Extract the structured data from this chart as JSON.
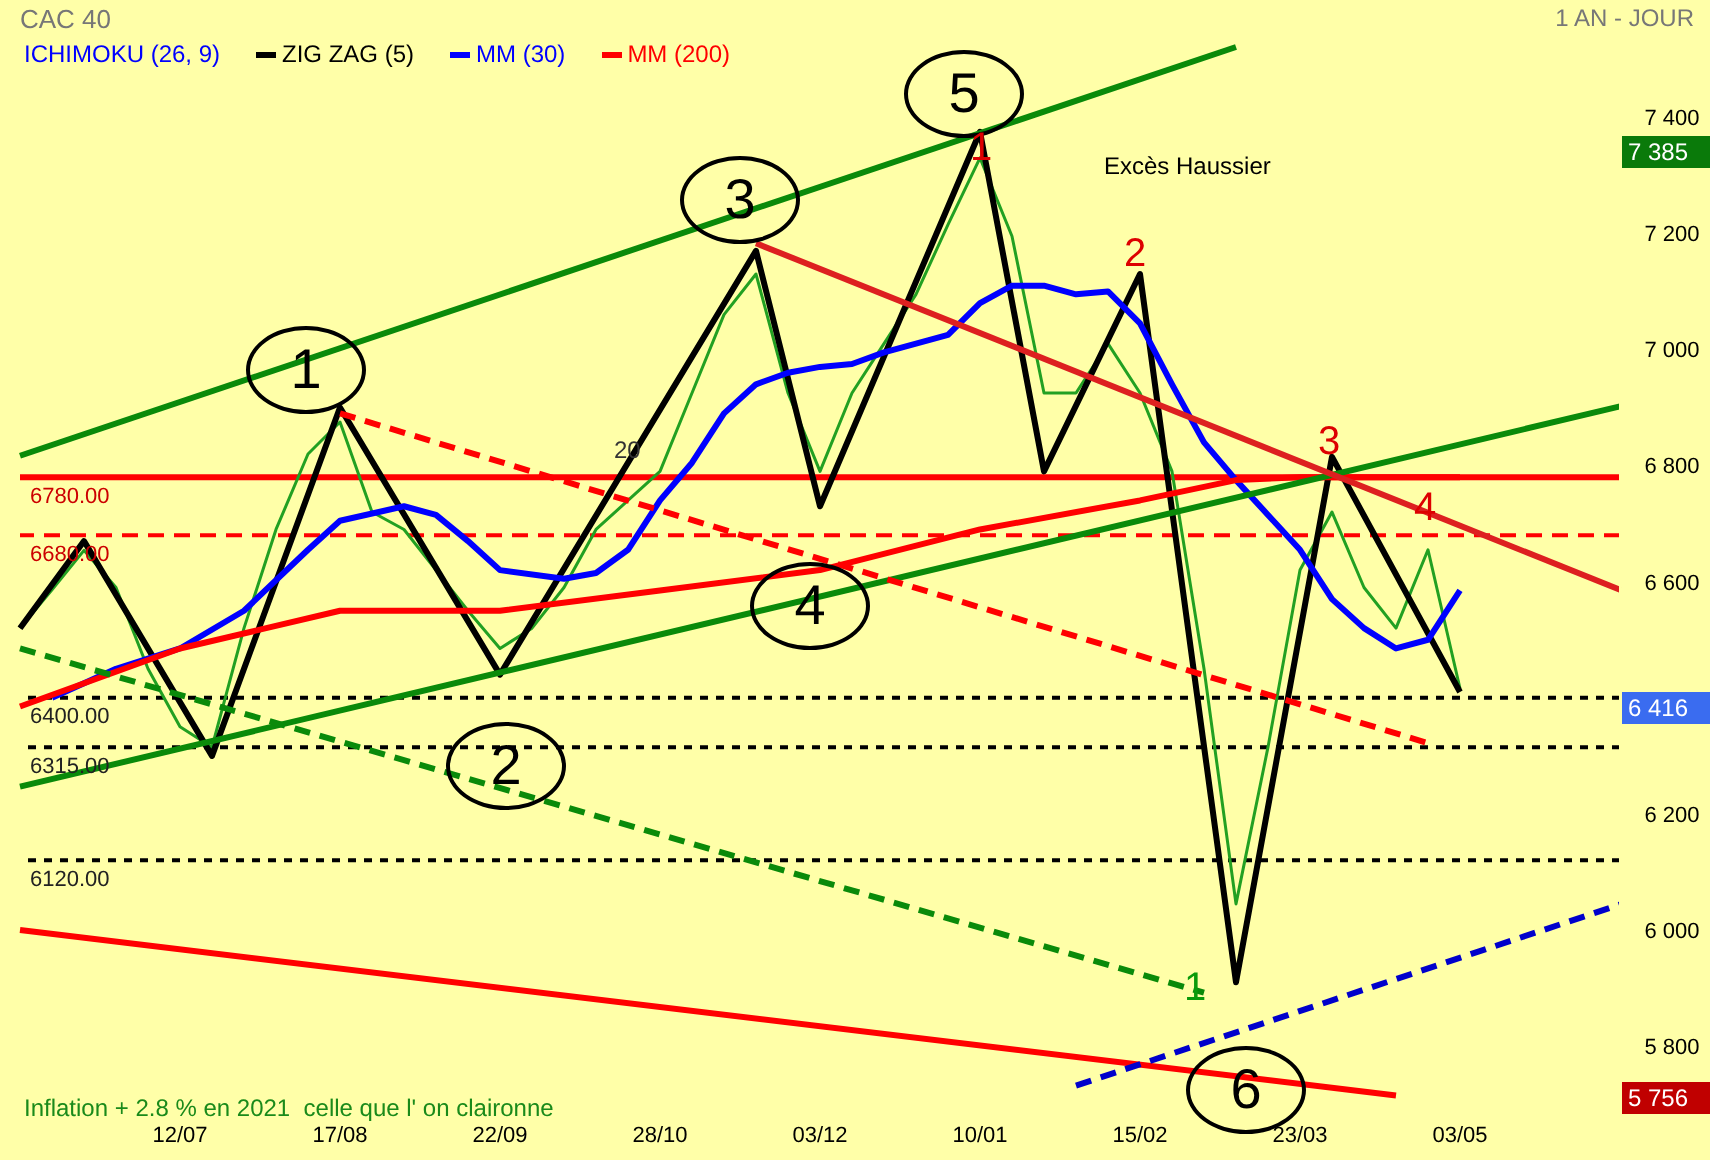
{
  "chart_data": {
    "type": "line",
    "title": "CAC 40",
    "subtitle": "1 AN - JOUR",
    "categories": [
      null,
      null,
      null,
      null,
      null,
      "12/07",
      null,
      null,
      null,
      null,
      "17/08",
      null,
      null,
      null,
      null,
      "22/09",
      null,
      null,
      null,
      null,
      "28/10",
      null,
      null,
      null,
      null,
      "03/12",
      null,
      null,
      null,
      null,
      "10/01",
      null,
      null,
      null,
      null,
      "15/02",
      null,
      null,
      null,
      null,
      "23/03",
      null,
      null,
      null,
      null,
      "03/05",
      null,
      null,
      null,
      null,
      null
    ],
    "series": [
      {
        "color": "#22a022",
        "values": [
          6520,
          6586,
          6654,
          6590,
          6450,
          6350,
          6315,
          6520,
          6690,
          6820,
          6875,
          6720,
          6690,
          6620,
          6550,
          6485,
          6520,
          6590,
          6690,
          6740,
          6790,
          6925,
          7060,
          7130,
          6925,
          6790,
          6925,
          7010,
          7095,
          7215,
          7330,
          7195,
          6925,
          6925,
          7010,
          6925,
          6790,
          6450,
          6045,
          6315,
          6620,
          6720,
          6590,
          6520,
          6655,
          6416,
          null,
          null,
          null,
          null,
          null
        ]
      },
      {
        "name": "ZIG ZAG (5)",
        "color": "#000000",
        "values": [
          6520,
          null,
          6670,
          null,
          null,
          null,
          6300,
          null,
          null,
          null,
          6900,
          null,
          null,
          null,
          null,
          6440,
          null,
          null,
          null,
          null,
          null,
          null,
          null,
          7170,
          null,
          6730,
          null,
          null,
          null,
          null,
          7375,
          null,
          6790,
          null,
          null,
          7130,
          null,
          null,
          5910,
          null,
          null,
          6815,
          null,
          null,
          null,
          6410,
          null,
          null,
          null,
          null,
          null
        ]
      },
      {
        "name": "MM (30)",
        "color": "#0000ff",
        "values": [
          null,
          6400,
          null,
          6450,
          null,
          6485,
          null,
          6550,
          null,
          6655,
          6705,
          null,
          6730,
          6715,
          6670,
          6620,
          null,
          6605,
          6615,
          6655,
          6740,
          6805,
          6890,
          6940,
          6960,
          6970,
          6975,
          6995,
          7010,
          7025,
          7080,
          7110,
          7110,
          7095,
          7100,
          7045,
          6940,
          6840,
          6775,
          6715,
          6655,
          6570,
          6520,
          6485,
          6500,
          6585,
          null,
          null,
          null,
          null,
          null
        ]
      },
      {
        "name": "MM (200)",
        "color": "#ff0000",
        "values": [
          6385,
          null,
          null,
          null,
          null,
          6485,
          null,
          null,
          null,
          null,
          6550,
          null,
          null,
          null,
          null,
          6550,
          null,
          null,
          null,
          null,
          6585,
          null,
          null,
          null,
          null,
          6620,
          null,
          null,
          null,
          null,
          6690,
          null,
          null,
          null,
          null,
          6740,
          null,
          null,
          6775,
          null,
          6780,
          null,
          null,
          null,
          null,
          6780,
          null,
          null,
          null,
          null,
          null
        ]
      },
      {
        "color": "#0a8a0a",
        "values": [
          6817,
          null,
          null,
          null,
          null,
          null,
          null,
          null,
          null,
          null,
          null,
          null,
          null,
          null,
          null,
          null,
          null,
          null,
          null,
          null,
          null,
          null,
          null,
          null,
          null,
          null,
          null,
          null,
          null,
          null,
          null,
          null,
          null,
          null,
          null,
          null,
          null,
          null,
          7521,
          null,
          null,
          null,
          null,
          null,
          null,
          null,
          null,
          null,
          null,
          null,
          null
        ]
      },
      {
        "color": "#0a8a0a",
        "values": [
          6247,
          null,
          null,
          null,
          null,
          null,
          null,
          null,
          null,
          null,
          null,
          null,
          null,
          null,
          null,
          null,
          null,
          null,
          null,
          null,
          null,
          null,
          null,
          null,
          null,
          null,
          null,
          null,
          null,
          null,
          null,
          null,
          null,
          null,
          null,
          null,
          null,
          null,
          null,
          null,
          null,
          null,
          null,
          null,
          null,
          null,
          null,
          null,
          null,
          null,
          6902
        ]
      },
      {
        "color": "#dd2020",
        "values": [
          null,
          null,
          null,
          null,
          null,
          null,
          null,
          null,
          null,
          null,
          null,
          null,
          null,
          null,
          null,
          null,
          null,
          null,
          null,
          null,
          null,
          null,
          null,
          7183,
          null,
          null,
          null,
          null,
          null,
          null,
          null,
          null,
          null,
          null,
          null,
          null,
          null,
          null,
          null,
          null,
          null,
          null,
          null,
          null,
          null,
          null,
          null,
          null,
          null,
          null,
          6586
        ]
      },
      {
        "color": "#ff0000",
        "values": [
          6000,
          null,
          null,
          null,
          null,
          null,
          null,
          null,
          null,
          null,
          null,
          null,
          null,
          null,
          null,
          null,
          null,
          null,
          null,
          null,
          null,
          null,
          null,
          null,
          null,
          null,
          null,
          null,
          null,
          null,
          null,
          null,
          null,
          null,
          null,
          null,
          null,
          null,
          null,
          null,
          null,
          null,
          null,
          5715,
          null,
          null,
          null,
          null,
          null,
          null,
          null
        ]
      },
      {
        "color": "#0000cc",
        "line_style": "dashed",
        "values": [
          null,
          null,
          null,
          null,
          null,
          null,
          null,
          null,
          null,
          null,
          null,
          null,
          null,
          null,
          null,
          null,
          null,
          null,
          null,
          null,
          null,
          null,
          null,
          null,
          null,
          null,
          null,
          null,
          null,
          null,
          null,
          null,
          null,
          5732,
          null,
          null,
          null,
          null,
          null,
          null,
          null,
          null,
          null,
          null,
          null,
          null,
          null,
          null,
          null,
          null,
          6044
        ]
      },
      {
        "color": "#ff0000",
        "line_style": "dashed",
        "values": [
          null,
          null,
          null,
          null,
          null,
          null,
          null,
          null,
          null,
          null,
          6890,
          null,
          null,
          null,
          null,
          null,
          null,
          null,
          null,
          null,
          null,
          null,
          null,
          null,
          null,
          null,
          null,
          null,
          null,
          null,
          null,
          null,
          null,
          null,
          null,
          null,
          null,
          null,
          null,
          null,
          null,
          null,
          null,
          null,
          6322,
          null,
          null,
          null,
          null,
          null,
          null
        ]
      },
      {
        "color": "#0a8a0a",
        "line_style": "dashed",
        "values": [
          6485,
          null,
          null,
          null,
          null,
          null,
          null,
          null,
          null,
          null,
          null,
          null,
          null,
          null,
          null,
          null,
          null,
          null,
          null,
          null,
          null,
          null,
          null,
          null,
          null,
          null,
          null,
          null,
          null,
          null,
          null,
          null,
          null,
          null,
          null,
          null,
          null,
          5892,
          null,
          null,
          null,
          null,
          null,
          null,
          null,
          null,
          null,
          null,
          null,
          null,
          null
        ]
      }
    ],
    "ylim": [
      5690,
      7540
    ],
    "yticks": [
      {
        "value": 5800,
        "label": "5 800"
      },
      {
        "value": 6000,
        "label": "6 000"
      },
      {
        "value": 6200,
        "label": "6 200"
      },
      {
        "value": 6400,
        "label": null
      },
      {
        "value": 6600,
        "label": "6 600"
      },
      {
        "value": 6800,
        "label": "6 800"
      },
      {
        "value": 7000,
        "label": "7 000"
      },
      {
        "value": 7200,
        "label": "7 200"
      },
      {
        "value": 7400,
        "label": "7 400"
      }
    ],
    "ref_lines": [
      {
        "axis": "y",
        "value": 6780,
        "label": "6780.00",
        "color": "#ff0000",
        "line_style": "solid"
      },
      {
        "axis": "y",
        "value": 6680,
        "label": "6680.00",
        "color": "#ff0000",
        "line_style": "dashed"
      },
      {
        "axis": "y",
        "value": 6400,
        "label": "6400.00",
        "color": "#000000",
        "line_style": "dotted"
      },
      {
        "axis": "y",
        "value": 6315,
        "label": "6315.00",
        "color": "#000000",
        "line_style": "dotted"
      },
      {
        "axis": "y",
        "value": 6120,
        "label": "6120.00",
        "color": "#000000",
        "line_style": "dotted"
      }
    ],
    "annotations": [
      "1",
      "2",
      "3",
      "4",
      "5",
      "6",
      "1",
      "2",
      "3",
      "4",
      "1",
      "20",
      "Excès Haussier",
      "ICHIMOKU (26, 9)",
      "Inflation + 2.8 % en 2021  celle que l' on claironne",
      "7 385",
      "6 416",
      "5 756"
    ],
    "legend": "top left",
    "marker": "none",
    "line_style": "solid"
  }
}
